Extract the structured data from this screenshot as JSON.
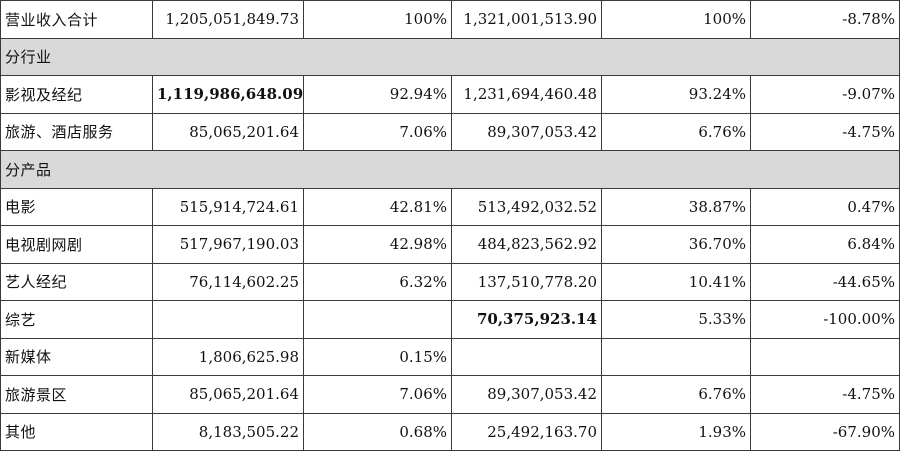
{
  "table": {
    "rows": [
      {
        "type": "data",
        "name": "营业收入合计",
        "cols": [
          "1,205,051,849.73",
          "100%",
          "1,321,001,513.90",
          "100%",
          "-8.78%"
        ]
      },
      {
        "type": "section",
        "label": "分行业"
      },
      {
        "type": "data",
        "name": "影视及经纪",
        "cols": [
          "1,119,986,648.09",
          "92.94%",
          "1,231,694,460.48",
          "93.24%",
          "-9.07%"
        ]
      },
      {
        "type": "data",
        "name": "旅游、酒店服务",
        "cols": [
          "85,065,201.64",
          "7.06%",
          "89,307,053.42",
          "6.76%",
          "-4.75%"
        ]
      },
      {
        "type": "section",
        "label": "分产品"
      },
      {
        "type": "data",
        "name": "电影",
        "cols": [
          "515,914,724.61",
          "42.81%",
          "513,492,032.52",
          "38.87%",
          "0.47%"
        ]
      },
      {
        "type": "data",
        "name": "电视剧网剧",
        "cols": [
          "517,967,190.03",
          "42.98%",
          "484,823,562.92",
          "36.70%",
          "6.84%"
        ]
      },
      {
        "type": "data",
        "name": "艺人经纪",
        "cols": [
          "76,114,602.25",
          "6.32%",
          "137,510,778.20",
          "10.41%",
          "-44.65%"
        ]
      },
      {
        "type": "data",
        "name": "综艺",
        "cols": [
          "",
          "",
          "70,375,923.14",
          "5.33%",
          "-100.00%"
        ]
      },
      {
        "type": "data",
        "name": "新媒体",
        "cols": [
          "1,806,625.98",
          "0.15%",
          "",
          "",
          ""
        ]
      },
      {
        "type": "data",
        "name": "旅游景区",
        "cols": [
          "85,065,201.64",
          "7.06%",
          "89,307,053.42",
          "6.76%",
          "-4.75%"
        ]
      },
      {
        "type": "data",
        "name": "其他",
        "cols": [
          "8,183,505.22",
          "0.68%",
          "25,492,163.70",
          "1.93%",
          "-67.90%"
        ]
      }
    ]
  }
}
